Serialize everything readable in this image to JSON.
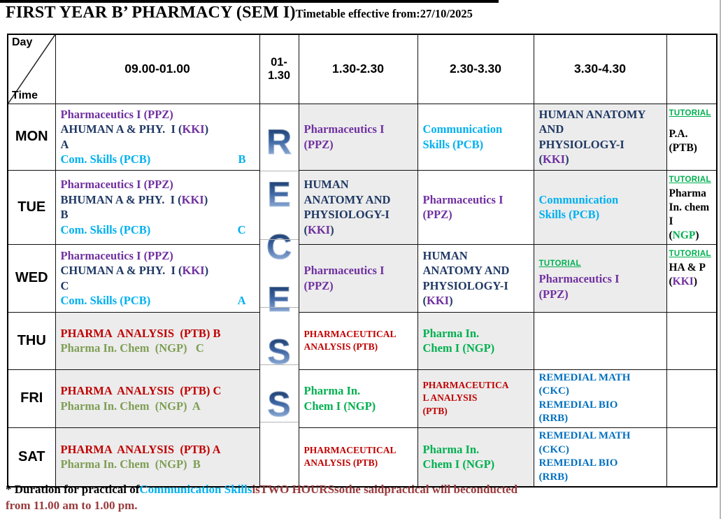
{
  "title": "FIRST YEAR B’ PHARMACY (SEM I)",
  "subtitle": "Timetable effective from:27/10/2025",
  "colors": {
    "purple": "#7030A0",
    "navy": "#1F3864",
    "cyan": "#00B0F0",
    "red": "#C00000",
    "olive": "#7E9E54",
    "green": "#00B050",
    "blue": "#0070C0",
    "maroon": "#993A3C",
    "tutorial_green": "#00B050",
    "gray_cell": "#ECECEC"
  },
  "header": {
    "corner_top": "Day",
    "corner_bottom": "Time",
    "cols": [
      "09.00-01.00",
      "01-1.30",
      "1.30-2.30",
      "2.30-3.30",
      "3.30-4.30",
      ""
    ]
  },
  "recess_letters": [
    "R",
    "E",
    "C",
    "E",
    "S",
    "S"
  ],
  "rows": [
    {
      "day": "MON",
      "morning": {
        "bg": "w",
        "lines": [
          {
            "segs": [
              [
                "Pharmaceutics I (PPZ)",
                "purple"
              ]
            ]
          },
          {
            "segs": [
              [
                "AHUMAN A & PHY.  I (",
                "navy"
              ],
              [
                "KKI",
                "purple"
              ],
              [
                ")",
                "navy"
              ]
            ]
          },
          {
            "segs": [
              [
                "A",
                "navy"
              ]
            ]
          },
          {
            "segs": [
              [
                "Com. Skills (PCB)",
                "cyan"
              ]
            ],
            "tag": [
              "B",
              "cyan"
            ]
          }
        ]
      },
      "p1": {
        "bg": "g",
        "lines": [
          {
            "segs": [
              [
                "Pharmaceutics I",
                "purple"
              ]
            ]
          },
          {
            "segs": [
              [
                "(PPZ)",
                "purple"
              ]
            ]
          }
        ]
      },
      "p2": {
        "bg": "w",
        "lines": [
          {
            "segs": [
              [
                "Communication",
                "cyan"
              ]
            ]
          },
          {
            "segs": [
              [
                "Skills (PCB)",
                "cyan"
              ]
            ]
          }
        ]
      },
      "p3": {
        "bg": "g",
        "lines": [
          {
            "segs": [
              [
                "HUMAN ANATOMY",
                "navy"
              ]
            ]
          },
          {
            "segs": [
              [
                "AND",
                "navy"
              ]
            ]
          },
          {
            "segs": [
              [
                "PHYSIOLOGY-I",
                "navy"
              ]
            ]
          },
          {
            "segs": [
              [
                "(",
                "navy"
              ],
              [
                "KKI",
                "purple"
              ],
              [
                ")",
                "navy"
              ]
            ]
          }
        ]
      },
      "tut": {
        "bg": "w",
        "lines": [
          {
            "segs": [
              [
                "TUTORIAL",
                "tut"
              ]
            ],
            "gap": true
          },
          {
            "segs": [
              [
                "P.A.",
                "black"
              ]
            ]
          },
          {
            "segs": [
              [
                "(PTB)",
                "black"
              ]
            ]
          }
        ]
      }
    },
    {
      "day": "TUE",
      "morning": {
        "bg": "w",
        "lines": [
          {
            "segs": [
              [
                "Pharmaceutics I (PPZ)",
                "purple"
              ]
            ]
          },
          {
            "segs": [
              [
                "BHUMAN A & PHY.  I (",
                "navy"
              ],
              [
                "KKI",
                "purple"
              ],
              [
                ")",
                "navy"
              ]
            ]
          },
          {
            "segs": [
              [
                "B",
                "navy"
              ]
            ]
          },
          {
            "segs": [
              [
                "Com. Skills (PCB)",
                "cyan"
              ]
            ],
            "tag": [
              "C",
              "cyan"
            ]
          }
        ]
      },
      "p1": {
        "bg": "g",
        "lines": [
          {
            "segs": [
              [
                "HUMAN",
                "navy"
              ]
            ]
          },
          {
            "segs": [
              [
                "ANATOMY AND",
                "navy"
              ]
            ]
          },
          {
            "segs": [
              [
                "PHYSIOLOGY-I",
                "navy"
              ]
            ]
          },
          {
            "segs": [
              [
                "(",
                "navy"
              ],
              [
                "KKI",
                "purple"
              ],
              [
                ")",
                "navy"
              ]
            ]
          }
        ]
      },
      "p2": {
        "bg": "w",
        "lines": [
          {
            "segs": [
              [
                "Pharmaceutics I",
                "purple"
              ]
            ]
          },
          {
            "segs": [
              [
                "(PPZ)",
                "purple"
              ]
            ]
          }
        ]
      },
      "p3": {
        "bg": "g",
        "lines": [
          {
            "segs": [
              [
                "Communication",
                "cyan"
              ]
            ]
          },
          {
            "segs": [
              [
                "Skills (PCB)",
                "cyan"
              ]
            ]
          }
        ]
      },
      "tut": {
        "bg": "w",
        "lines": [
          {
            "segs": [
              [
                "TUTORIAL",
                "tut"
              ]
            ]
          },
          {
            "segs": [
              [
                "Pharma",
                "black"
              ]
            ]
          },
          {
            "segs": [
              [
                "In. chem",
                "black"
              ]
            ]
          },
          {
            "segs": [
              [
                "I",
                "black"
              ]
            ]
          },
          {
            "segs": [
              [
                "(",
                "black"
              ],
              [
                "NGP",
                "green"
              ],
              [
                ")",
                "black"
              ]
            ]
          }
        ]
      }
    },
    {
      "day": "WED",
      "morning": {
        "bg": "w",
        "lines": [
          {
            "segs": [
              [
                "Pharmaceutics I (PPZ)",
                "purple"
              ]
            ]
          },
          {
            "segs": [
              [
                "CHUMAN A & PHY.  I (",
                "navy"
              ],
              [
                "KKI",
                "purple"
              ],
              [
                ")",
                "navy"
              ]
            ]
          },
          {
            "segs": [
              [
                "C",
                "navy"
              ]
            ]
          },
          {
            "segs": [
              [
                "Com. Skills (PCB)",
                "cyan"
              ]
            ],
            "tag": [
              "A",
              "cyan"
            ]
          }
        ]
      },
      "p1": {
        "bg": "g",
        "lines": [
          {
            "segs": [
              [
                "Pharmaceutics I",
                "purple"
              ]
            ]
          },
          {
            "segs": [
              [
                "(PPZ)",
                "purple"
              ]
            ]
          }
        ]
      },
      "p2": {
        "bg": "w",
        "lines": [
          {
            "segs": [
              [
                "HUMAN",
                "navy"
              ]
            ]
          },
          {
            "segs": [
              [
                "ANATOMY AND",
                "navy"
              ]
            ]
          },
          {
            "segs": [
              [
                "PHYSIOLOGY-I",
                "navy"
              ]
            ]
          },
          {
            "segs": [
              [
                "(",
                "navy"
              ],
              [
                "KKI",
                "purple"
              ],
              [
                ")",
                "navy"
              ]
            ]
          }
        ]
      },
      "p3": {
        "bg": "g",
        "lines": [
          {
            "segs": [
              [
                "TUTORIAL",
                "tut"
              ]
            ]
          },
          {
            "segs": [
              [
                "Pharmaceutics I",
                "purple"
              ]
            ]
          },
          {
            "segs": [
              [
                "(PPZ)",
                "purple"
              ]
            ]
          }
        ]
      },
      "tut": {
        "bg": "w",
        "lines": [
          {
            "segs": [
              [
                "TUTORIAL",
                "tut"
              ]
            ]
          },
          {
            "segs": [
              [
                "HA & P",
                "black"
              ]
            ]
          },
          {
            "segs": [
              [
                "(",
                "black"
              ],
              [
                "KKI",
                "purple"
              ],
              [
                ")",
                "black"
              ]
            ]
          }
        ]
      }
    },
    {
      "day": "THU",
      "morning": {
        "bg": "g",
        "lines": [
          {
            "segs": [
              [
                "PHARMA  ANALYSIS  (PTB) B",
                "red"
              ]
            ]
          },
          {
            "segs": [
              [
                "Pharma In. Chem  (NGP)   C",
                "olive"
              ]
            ]
          }
        ]
      },
      "p1": {
        "bg": "w",
        "size": "sm",
        "lines": [
          {
            "segs": [
              [
                "PHARMACEUTICAL",
                "red"
              ]
            ]
          },
          {
            "segs": [
              [
                "ANALYSIS (PTB)",
                "red"
              ]
            ]
          }
        ]
      },
      "p2": {
        "bg": "g",
        "lines": [
          {
            "segs": [
              [
                "Pharma In.",
                "green"
              ]
            ]
          },
          {
            "segs": [
              [
                "Chem I (NGP)",
                "green"
              ]
            ]
          }
        ]
      },
      "p3": {
        "bg": "w",
        "lines": []
      },
      "tut": {
        "bg": "w",
        "lines": []
      }
    },
    {
      "day": "FRI",
      "morning": {
        "bg": "g",
        "lines": [
          {
            "segs": [
              [
                "PHARMA  ANALYSIS  (PTB) C",
                "red"
              ]
            ]
          },
          {
            "segs": [
              [
                "Pharma In. Chem  (NGP)  A",
                "olive"
              ]
            ]
          }
        ]
      },
      "p1": {
        "bg": "w",
        "lines": [
          {
            "segs": [
              [
                "Pharma In.",
                "green"
              ]
            ]
          },
          {
            "segs": [
              [
                "Chem I (NGP)",
                "green"
              ]
            ]
          }
        ]
      },
      "p2": {
        "bg": "g",
        "size": "sm",
        "lines": [
          {
            "segs": [
              [
                "PHARMACEUTICA",
                "red"
              ]
            ]
          },
          {
            "segs": [
              [
                "L ANALYSIS",
                "red"
              ]
            ]
          },
          {
            "segs": [
              [
                "(PTB)",
                "red"
              ]
            ]
          }
        ]
      },
      "p3": {
        "bg": "w",
        "size": "md",
        "lines": [
          {
            "segs": [
              [
                "REMEDIAL MATH",
                "blue"
              ]
            ]
          },
          {
            "segs": [
              [
                "(CKC)",
                "blue"
              ]
            ]
          },
          {
            "segs": [
              [
                "REMEDIAL BIO",
                "blue"
              ]
            ]
          },
          {
            "segs": [
              [
                "(RRB)",
                "blue"
              ]
            ]
          }
        ]
      },
      "tut": {
        "bg": "w",
        "lines": []
      }
    },
    {
      "day": "SAT",
      "morning": {
        "bg": "g",
        "lines": [
          {
            "segs": [
              [
                "PHARMA  ANALYSIS  (PTB) A",
                "red"
              ]
            ]
          },
          {
            "segs": [
              [
                "Pharma In. Chem  (NGP)  B",
                "olive"
              ]
            ]
          }
        ]
      },
      "p1": {
        "bg": "w",
        "size": "sm",
        "lines": [
          {
            "segs": [
              [
                "PHARMACEUTICAL",
                "red"
              ]
            ]
          },
          {
            "segs": [
              [
                "ANALYSIS (PTB)",
                "red"
              ]
            ]
          }
        ]
      },
      "p2": {
        "bg": "g",
        "lines": [
          {
            "segs": [
              [
                "Pharma In.",
                "green"
              ]
            ]
          },
          {
            "segs": [
              [
                "Chem I (NGP)",
                "green"
              ]
            ]
          }
        ]
      },
      "p3": {
        "bg": "w",
        "size": "md",
        "lines": [
          {
            "segs": [
              [
                "REMEDIAL MATH",
                "blue"
              ]
            ]
          },
          {
            "segs": [
              [
                "(CKC)",
                "blue"
              ]
            ]
          },
          {
            "segs": [
              [
                "REMEDIAL BIO",
                "blue"
              ]
            ]
          },
          {
            "segs": [
              [
                "(RRB)",
                "blue"
              ]
            ]
          }
        ]
      },
      "tut": {
        "bg": "w",
        "lines": []
      }
    }
  ],
  "note": {
    "lines": [
      {
        "segs": [
          [
            "* Duration for practical of",
            "black"
          ],
          [
            "Communication Skills",
            "cyan"
          ],
          [
            "isTWO HOURSsothe saidpractical will beconducted",
            "maroon"
          ]
        ]
      },
      {
        "segs": [
          [
            "from 11.00 am to 1.00 pm.",
            "maroon"
          ]
        ]
      }
    ]
  }
}
